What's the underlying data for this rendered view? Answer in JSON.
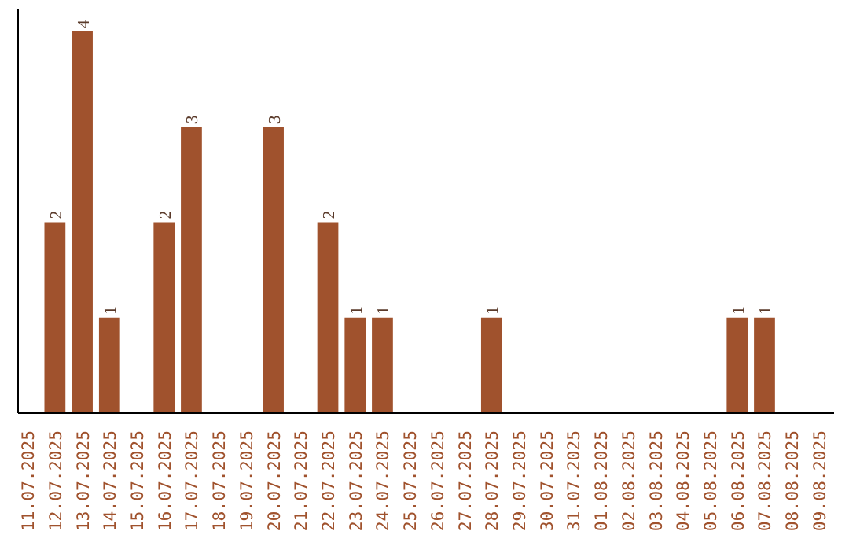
{
  "chart_data": {
    "type": "bar",
    "categories": [
      "11.07.2025",
      "12.07.2025",
      "13.07.2025",
      "14.07.2025",
      "15.07.2025",
      "16.07.2025",
      "17.07.2025",
      "18.07.2025",
      "19.07.2025",
      "20.07.2025",
      "21.07.2025",
      "22.07.2025",
      "23.07.2025",
      "24.07.2025",
      "25.07.2025",
      "26.07.2025",
      "27.07.2025",
      "28.07.2025",
      "29.07.2025",
      "30.07.2025",
      "31.07.2025",
      "01.08.2025",
      "02.08.2025",
      "03.08.2025",
      "04.08.2025",
      "05.08.2025",
      "06.08.2025",
      "07.08.2025",
      "08.08.2025",
      "09.08.2025"
    ],
    "values": [
      0,
      2,
      4,
      1,
      0,
      2,
      3,
      0,
      0,
      3,
      0,
      2,
      1,
      1,
      0,
      0,
      0,
      1,
      0,
      0,
      0,
      0,
      0,
      0,
      0,
      0,
      1,
      1,
      0,
      0
    ],
    "value_labels": [
      null,
      "2",
      "4",
      "1",
      null,
      "2",
      "3",
      null,
      null,
      "3",
      null,
      "2",
      "1",
      "1",
      null,
      null,
      null,
      "1",
      null,
      null,
      null,
      null,
      null,
      null,
      null,
      null,
      "1",
      "1",
      null,
      null
    ],
    "color": "#a0522d"
  }
}
